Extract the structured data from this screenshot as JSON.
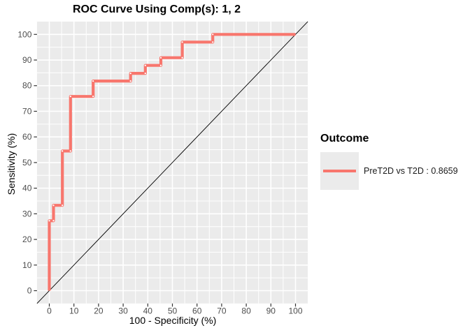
{
  "chart_data": {
    "type": "line",
    "subtype": "roc-step-curve",
    "title": "ROC Curve Using Comp(s): 1, 2",
    "xlabel": "100 - Specificity (%)",
    "ylabel": "Sensitivity (%)",
    "xlim": [
      -5,
      105
    ],
    "ylim": [
      -5,
      105
    ],
    "x_ticks": [
      0,
      10,
      20,
      30,
      40,
      50,
      60,
      70,
      80,
      90,
      100
    ],
    "y_ticks": [
      0,
      10,
      20,
      30,
      40,
      50,
      60,
      70,
      80,
      90,
      100
    ],
    "grid": {
      "major": true,
      "minor": true,
      "grid_color": "#FFFFFF",
      "panel_bg": "#EBEBEB",
      "legend_position": "right"
    },
    "reference_line": {
      "type": "diagonal",
      "from": [
        0,
        0
      ],
      "to": [
        100,
        100
      ],
      "color": "#000000"
    },
    "series": [
      {
        "name": "PreT2D vs T2D : 0.8659",
        "auc": 0.8659,
        "color": "#F8766D",
        "x": [
          0,
          0,
          1.7,
          1.7,
          5.3,
          5.3,
          8.6,
          8.6,
          17.8,
          17.8,
          33,
          33,
          39,
          39,
          45.3,
          45.3,
          54,
          54,
          66.4,
          66.4,
          100
        ],
        "y": [
          0,
          27.3,
          27.3,
          33.3,
          33.3,
          54.5,
          54.5,
          75.8,
          75.8,
          81.8,
          81.8,
          84.8,
          84.8,
          87.9,
          87.9,
          90.9,
          90.9,
          97,
          97,
          100,
          100
        ]
      }
    ]
  },
  "legend": {
    "title": "Outcome",
    "items": [
      {
        "label": "PreT2D vs T2D : 0.8659",
        "color": "#F8766D"
      }
    ]
  },
  "colors": {
    "panel_bg": "#EBEBEB",
    "grid": "#FFFFFF",
    "tick_label": "#4D4D4D",
    "tick_mark": "#333333",
    "text": "#000000",
    "curve": "#F8766D",
    "legend_key_bg": "#EBEBEB",
    "point_marker": "#FFFFFF"
  }
}
